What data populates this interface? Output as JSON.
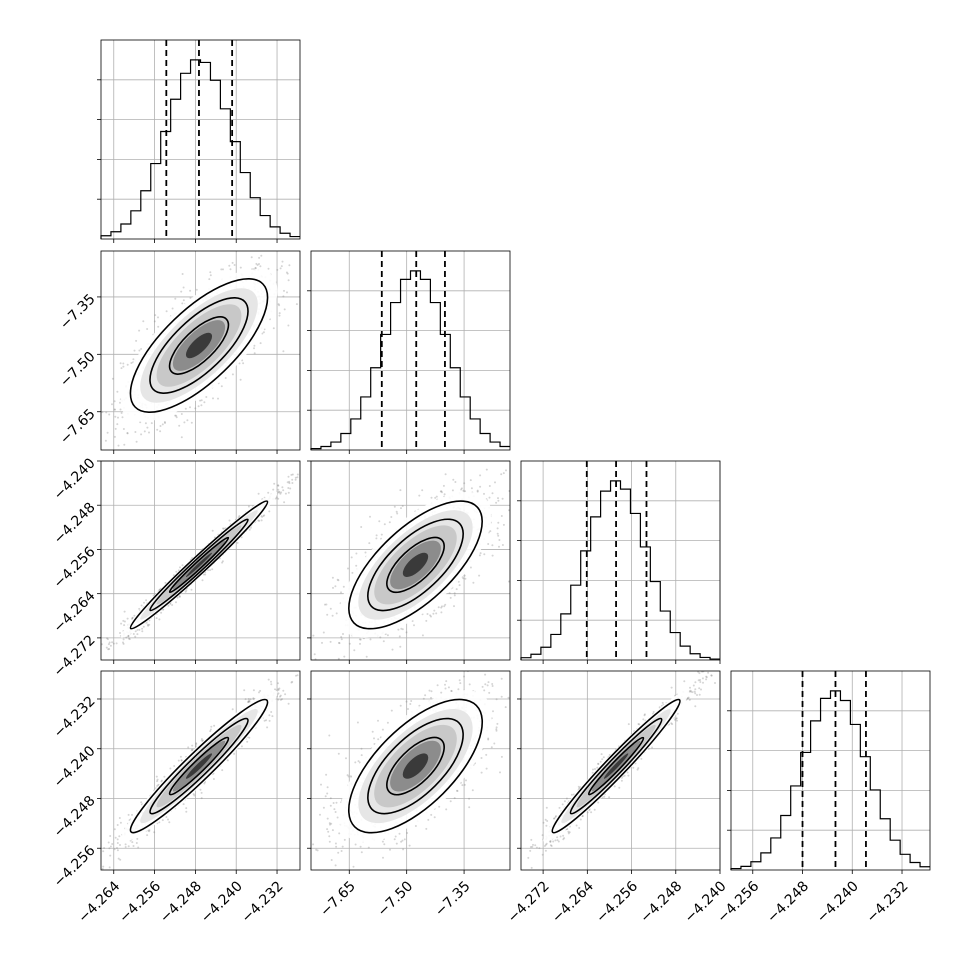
{
  "chart_data": {
    "type": "corner",
    "grid": true,
    "parameters": [
      {
        "range": [
          -4.2665,
          -4.2275
        ],
        "ticks": [
          "-4.264",
          "-4.256",
          "-4.248",
          "-4.240",
          "-4.232"
        ],
        "tick_values": [
          -4.264,
          -4.256,
          -4.248,
          -4.24,
          -4.232
        ],
        "quantiles": [
          -4.2537,
          -4.2473,
          -4.2408
        ],
        "mean": -4.2473,
        "sd": 0.0064,
        "corr_row": 0
      },
      {
        "range": [
          -7.75,
          -7.23
        ],
        "ticks": [
          "-7.65",
          "-7.50",
          "-7.35"
        ],
        "tick_values": [
          -7.65,
          -7.5,
          -7.35
        ],
        "quantiles": [
          -7.565,
          -7.475,
          -7.4
        ],
        "mean": -7.477,
        "sd": 0.083
      },
      {
        "range": [
          -4.276,
          -4.24
        ],
        "ticks": [
          "-4.272",
          "-4.264",
          "-4.256",
          "-4.248",
          "-4.240"
        ],
        "tick_values": [
          -4.272,
          -4.264,
          -4.256,
          -4.248,
          -4.24
        ],
        "quantiles": [
          -4.2641,
          -4.2588,
          -4.2533
        ],
        "mean": -4.2588,
        "sd": 0.0055
      },
      {
        "range": [
          -4.2595,
          -4.2275
        ],
        "ticks": [
          "-4.256",
          "-4.248",
          "-4.240",
          "-4.232"
        ],
        "tick_values": [
          -4.256,
          -4.248,
          -4.24,
          -4.232
        ],
        "quantiles": [
          -4.248,
          -4.2427,
          -4.2378
        ],
        "mean": -4.2428,
        "sd": 0.0051
      }
    ],
    "correlations": {
      "1-0": 0.72,
      "2-0": 0.985,
      "3-0": 0.96,
      "2-1": 0.68,
      "3-1": 0.66,
      "3-2": 0.975
    },
    "histogram_bins": 20,
    "scatter_color": "#888888"
  }
}
